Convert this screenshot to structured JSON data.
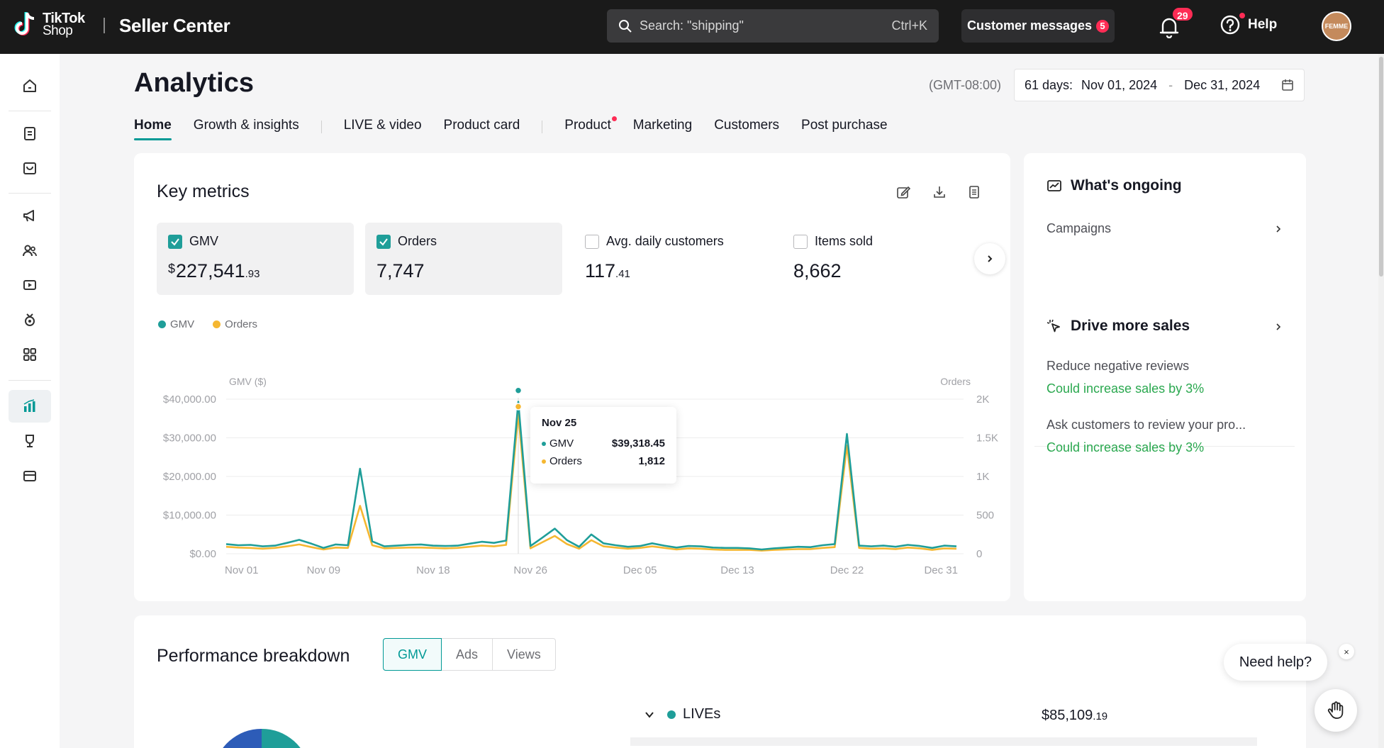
{
  "topbar": {
    "logo_line1": "TikTok",
    "logo_line2": "Shop",
    "app_title": "Seller Center",
    "search_placeholder": "Search: \"shipping\"",
    "search_shortcut": "Ctrl+K",
    "customer_messages_label": "Customer messages",
    "customer_messages_count": "5",
    "notifications_count": "29",
    "help_label": "Help",
    "avatar_text": "FEMME"
  },
  "sidebar": {
    "items": [
      {
        "icon": "home-icon"
      },
      {
        "icon": "orders-icon"
      },
      {
        "icon": "products-icon"
      },
      {
        "icon": "marketing-megaphone-icon"
      },
      {
        "icon": "customers-icon"
      },
      {
        "icon": "video-icon"
      },
      {
        "icon": "growth-icon"
      },
      {
        "icon": "apps-icon"
      },
      {
        "icon": "analytics-icon",
        "active": true
      },
      {
        "icon": "trophy-icon"
      },
      {
        "icon": "finance-icon"
      }
    ]
  },
  "header": {
    "title": "Analytics",
    "timezone": "(GMT-08:00)",
    "date_range_prefix": "61 days:",
    "date_start": "Nov 01, 2024",
    "date_separator": "-",
    "date_end": "Dec 31, 2024"
  },
  "tabs": [
    {
      "label": "Home",
      "active": true
    },
    {
      "label": "Growth & insights"
    },
    {
      "label": "LIVE & video"
    },
    {
      "label": "Product card"
    },
    {
      "label": "Product",
      "dot": true
    },
    {
      "label": "Marketing"
    },
    {
      "label": "Customers"
    },
    {
      "label": "Post purchase"
    }
  ],
  "key_metrics": {
    "title": "Key metrics",
    "metrics": [
      {
        "label": "GMV",
        "checked": true,
        "currency": "$",
        "value_main": "227,541",
        "value_dec": ".93"
      },
      {
        "label": "Orders",
        "checked": true,
        "value_main": "7,747",
        "value_dec": ""
      },
      {
        "label": "Avg. daily customers",
        "checked": false,
        "value_main": "117",
        "value_dec": ".41"
      },
      {
        "label": "Items sold",
        "checked": false,
        "value_main": "8,662",
        "value_dec": ""
      }
    ]
  },
  "chart_data": {
    "type": "line",
    "legend": [
      "GMV",
      "Orders"
    ],
    "left_axis_title": "GMV ($)",
    "right_axis_title": "Orders",
    "left_ticks": [
      "$0.00",
      "$10,000.00",
      "$20,000.00",
      "$30,000.00",
      "$40,000.00"
    ],
    "right_ticks": [
      "0",
      "500",
      "1K",
      "1.5K",
      "2K"
    ],
    "ylim_left": [
      0,
      40000
    ],
    "ylim_right": [
      0,
      2000
    ],
    "x_ticks": [
      "Nov 01",
      "Nov 09",
      "Nov 18",
      "Nov 26",
      "Dec 05",
      "Dec 13",
      "Dec 22",
      "Dec 31"
    ],
    "x": [
      "Nov 01",
      "Nov 02",
      "Nov 03",
      "Nov 04",
      "Nov 05",
      "Nov 06",
      "Nov 07",
      "Nov 08",
      "Nov 09",
      "Nov 10",
      "Nov 11",
      "Nov 12",
      "Nov 13",
      "Nov 14",
      "Nov 15",
      "Nov 16",
      "Nov 17",
      "Nov 18",
      "Nov 19",
      "Nov 20",
      "Nov 21",
      "Nov 22",
      "Nov 23",
      "Nov 24",
      "Nov 25",
      "Nov 26",
      "Nov 27",
      "Nov 28",
      "Nov 29",
      "Nov 30",
      "Dec 01",
      "Dec 02",
      "Dec 03",
      "Dec 04",
      "Dec 05",
      "Dec 06",
      "Dec 07",
      "Dec 08",
      "Dec 09",
      "Dec 10",
      "Dec 11",
      "Dec 12",
      "Dec 13",
      "Dec 14",
      "Dec 15",
      "Dec 16",
      "Dec 17",
      "Dec 18",
      "Dec 19",
      "Dec 20",
      "Dec 21",
      "Dec 22",
      "Dec 23",
      "Dec 24",
      "Dec 25",
      "Dec 26",
      "Dec 27",
      "Dec 28",
      "Dec 29",
      "Dec 30",
      "Dec 31"
    ],
    "series": [
      {
        "name": "GMV",
        "color": "#1f9e99",
        "axis": "left",
        "values": [
          2500,
          2200,
          2300,
          1900,
          2100,
          2800,
          3600,
          2600,
          1500,
          2400,
          2200,
          22000,
          3200,
          1900,
          2100,
          2300,
          2400,
          2100,
          2000,
          2100,
          2600,
          3100,
          2800,
          3400,
          39318,
          2000,
          4200,
          6500,
          3500,
          1800,
          5000,
          2700,
          2200,
          1800,
          2000,
          2700,
          2100,
          1600,
          2000,
          1900,
          1600,
          1500,
          1500,
          1400,
          1100,
          1400,
          1600,
          1800,
          1700,
          2200,
          2500,
          31000,
          2100,
          1900,
          2100,
          1800,
          2300,
          2000,
          1500,
          2100,
          1900
        ]
      },
      {
        "name": "Orders",
        "color": "#f5b731",
        "axis": "right",
        "values": [
          90,
          80,
          75,
          65,
          75,
          95,
          120,
          85,
          55,
          80,
          75,
          620,
          110,
          70,
          75,
          80,
          80,
          75,
          70,
          75,
          90,
          105,
          95,
          115,
          1812,
          70,
          150,
          230,
          125,
          65,
          175,
          95,
          80,
          65,
          75,
          95,
          75,
          55,
          70,
          65,
          55,
          50,
          50,
          50,
          40,
          50,
          55,
          60,
          60,
          75,
          85,
          1400,
          75,
          65,
          70,
          60,
          80,
          70,
          50,
          70,
          65
        ]
      }
    ],
    "tooltip": {
      "date": "Nov 25",
      "gmv_label": "GMV",
      "gmv_value": "$39,318.45",
      "orders_label": "Orders",
      "orders_value": "1,812"
    }
  },
  "side_panel": {
    "ongoing_title": "What's ongoing",
    "campaigns_label": "Campaigns",
    "drive_title": "Drive more sales",
    "opportunities": [
      {
        "title": "Reduce negative reviews",
        "subtitle": "Could increase sales by 3%"
      },
      {
        "title": "Ask customers to review your pro...",
        "subtitle": "Could increase sales by 3%"
      }
    ]
  },
  "performance": {
    "title": "Performance breakdown",
    "segments": [
      {
        "label": "GMV",
        "active": true
      },
      {
        "label": "Ads"
      },
      {
        "label": "Views"
      }
    ],
    "row_label": "LIVEs",
    "row_currency": "$",
    "row_value_main": "85,109",
    "row_value_dec": ".19"
  },
  "help_widget": {
    "label": "Need help?",
    "close": "×"
  }
}
